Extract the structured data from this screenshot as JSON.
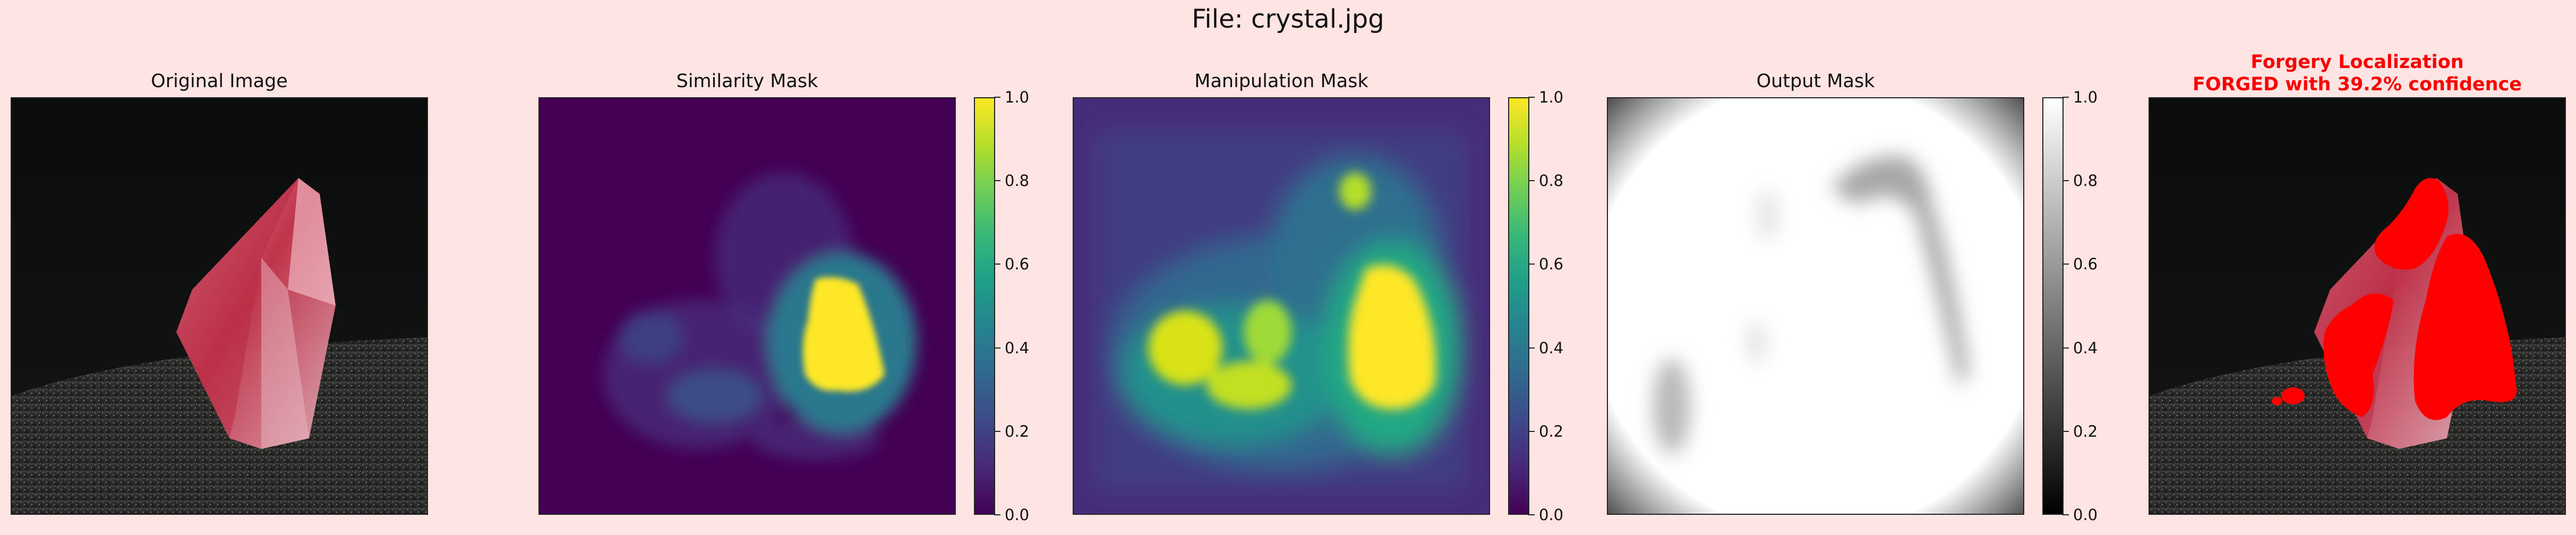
{
  "figure": {
    "suptitle": "File: crystal.jpg"
  },
  "panels": [
    {
      "title": "Original Image"
    },
    {
      "title": "Similarity Mask"
    },
    {
      "title": "Manipulation Mask"
    },
    {
      "title": "Output Mask"
    },
    {
      "title_line1": "Forgery Localization",
      "title_line2": "FORGED with 39.2% confidence"
    }
  ],
  "colorbars": {
    "similarity": {
      "colormap": "viridis",
      "range": [
        0.0,
        1.0
      ],
      "ticks": [
        "0.0",
        "0.2",
        "0.4",
        "0.6",
        "0.8",
        "1.0"
      ]
    },
    "manipulation": {
      "colormap": "viridis",
      "range": [
        0.0,
        1.0
      ],
      "ticks": [
        "0.0",
        "0.2",
        "0.4",
        "0.6",
        "0.8",
        "1.0"
      ]
    },
    "output": {
      "colormap": "gray",
      "range": [
        0.0,
        1.0
      ],
      "ticks": [
        "0.0",
        "0.2",
        "0.4",
        "0.6",
        "0.8",
        "1.0"
      ]
    }
  },
  "chart_data": [
    {
      "type": "heatmap",
      "title": "Original Image"
    },
    {
      "type": "heatmap",
      "title": "Similarity Mask",
      "colormap": "viridis",
      "vmin": 0.0,
      "vmax": 1.0
    },
    {
      "type": "heatmap",
      "title": "Manipulation Mask",
      "colormap": "viridis",
      "vmin": 0.0,
      "vmax": 1.0
    },
    {
      "type": "heatmap",
      "title": "Output Mask",
      "colormap": "gray",
      "vmin": 0.0,
      "vmax": 1.0
    },
    {
      "type": "heatmap",
      "title": "Forgery Localization",
      "subtitle": "FORGED with 39.2% confidence",
      "confidence_percent": 39.2
    }
  ],
  "colors": {
    "background": "#ffe4e4",
    "forged_overlay": "#ff0000",
    "title_red": "#ff0000"
  }
}
